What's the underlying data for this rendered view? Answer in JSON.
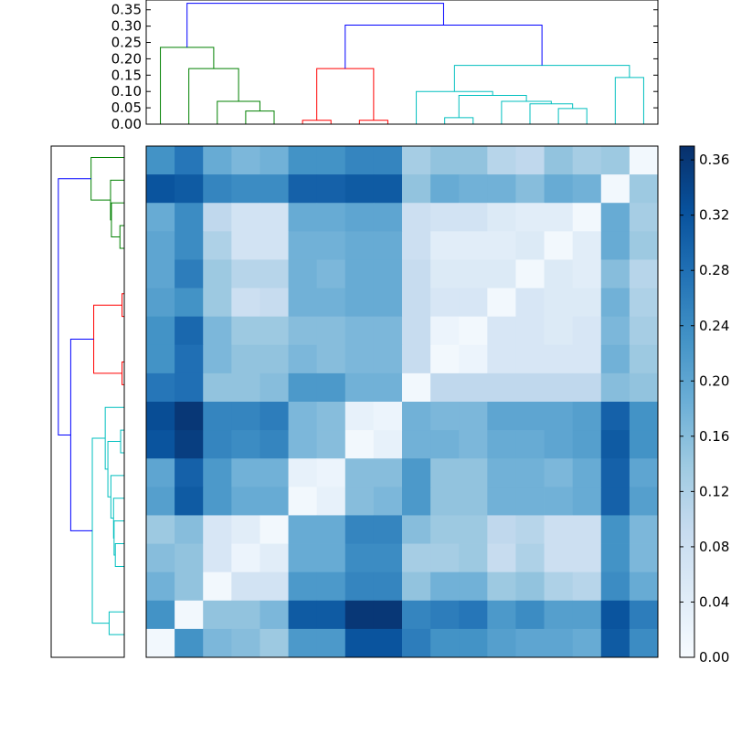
{
  "chart_data": {
    "type": "heatmap",
    "title": "",
    "n": 18,
    "colormap": "Blues",
    "colorbar": {
      "min": 0.0,
      "max": 0.37,
      "ticks": [
        0.0,
        0.04,
        0.08,
        0.12,
        0.16,
        0.2,
        0.24,
        0.28,
        0.32,
        0.36
      ],
      "tick_labels": [
        "0.00",
        "0.04",
        "0.08",
        "0.12",
        "0.16",
        "0.20",
        "0.24",
        "0.28",
        "0.32",
        "0.36"
      ]
    },
    "matrix": [
      [
        0.23,
        0.27,
        0.19,
        0.17,
        0.18,
        0.23,
        0.23,
        0.25,
        0.25,
        0.13,
        0.15,
        0.15,
        0.11,
        0.1,
        0.15,
        0.13,
        0.14,
        0.01
      ],
      [
        0.32,
        0.31,
        0.25,
        0.24,
        0.24,
        0.3,
        0.3,
        0.31,
        0.31,
        0.15,
        0.19,
        0.18,
        0.18,
        0.16,
        0.19,
        0.18,
        0.01,
        0.14
      ],
      [
        0.19,
        0.24,
        0.1,
        0.07,
        0.07,
        0.19,
        0.19,
        0.2,
        0.2,
        0.08,
        0.07,
        0.07,
        0.05,
        0.04,
        0.04,
        0.01,
        0.19,
        0.13
      ],
      [
        0.2,
        0.24,
        0.12,
        0.07,
        0.07,
        0.18,
        0.18,
        0.19,
        0.19,
        0.08,
        0.04,
        0.04,
        0.04,
        0.05,
        0.01,
        0.04,
        0.19,
        0.14
      ],
      [
        0.2,
        0.26,
        0.14,
        0.11,
        0.11,
        0.18,
        0.17,
        0.19,
        0.19,
        0.09,
        0.05,
        0.05,
        0.05,
        0.01,
        0.05,
        0.04,
        0.16,
        0.11
      ],
      [
        0.21,
        0.23,
        0.14,
        0.08,
        0.09,
        0.18,
        0.18,
        0.19,
        0.19,
        0.09,
        0.06,
        0.06,
        0.01,
        0.06,
        0.05,
        0.05,
        0.18,
        0.12
      ],
      [
        0.23,
        0.29,
        0.17,
        0.14,
        0.14,
        0.16,
        0.16,
        0.17,
        0.17,
        0.09,
        0.02,
        0.01,
        0.06,
        0.06,
        0.05,
        0.06,
        0.17,
        0.13
      ],
      [
        0.23,
        0.28,
        0.17,
        0.15,
        0.15,
        0.17,
        0.16,
        0.17,
        0.17,
        0.09,
        0.01,
        0.02,
        0.06,
        0.06,
        0.06,
        0.06,
        0.18,
        0.14
      ],
      [
        0.27,
        0.28,
        0.15,
        0.15,
        0.16,
        0.22,
        0.22,
        0.18,
        0.18,
        0.01,
        0.1,
        0.1,
        0.1,
        0.1,
        0.1,
        0.1,
        0.16,
        0.15
      ],
      [
        0.33,
        0.36,
        0.25,
        0.25,
        0.26,
        0.17,
        0.16,
        0.03,
        0.02,
        0.18,
        0.17,
        0.17,
        0.2,
        0.2,
        0.2,
        0.21,
        0.3,
        0.23
      ],
      [
        0.32,
        0.35,
        0.25,
        0.24,
        0.25,
        0.17,
        0.16,
        0.01,
        0.03,
        0.18,
        0.18,
        0.17,
        0.19,
        0.19,
        0.2,
        0.21,
        0.31,
        0.23
      ],
      [
        0.2,
        0.3,
        0.22,
        0.18,
        0.18,
        0.03,
        0.02,
        0.16,
        0.16,
        0.22,
        0.15,
        0.15,
        0.18,
        0.18,
        0.17,
        0.19,
        0.3,
        0.2
      ],
      [
        0.21,
        0.31,
        0.22,
        0.19,
        0.19,
        0.01,
        0.03,
        0.16,
        0.17,
        0.22,
        0.15,
        0.15,
        0.18,
        0.18,
        0.18,
        0.19,
        0.3,
        0.21
      ],
      [
        0.14,
        0.16,
        0.06,
        0.04,
        0.01,
        0.19,
        0.19,
        0.25,
        0.25,
        0.16,
        0.14,
        0.14,
        0.1,
        0.11,
        0.08,
        0.08,
        0.23,
        0.17
      ],
      [
        0.16,
        0.15,
        0.06,
        0.02,
        0.04,
        0.19,
        0.19,
        0.24,
        0.24,
        0.13,
        0.13,
        0.14,
        0.09,
        0.12,
        0.08,
        0.08,
        0.23,
        0.17
      ],
      [
        0.18,
        0.15,
        0.01,
        0.07,
        0.07,
        0.22,
        0.22,
        0.25,
        0.25,
        0.15,
        0.18,
        0.18,
        0.14,
        0.15,
        0.12,
        0.11,
        0.24,
        0.19
      ],
      [
        0.23,
        0.01,
        0.15,
        0.15,
        0.17,
        0.31,
        0.31,
        0.36,
        0.36,
        0.25,
        0.26,
        0.27,
        0.22,
        0.24,
        0.21,
        0.21,
        0.32,
        0.26
      ],
      [
        0.01,
        0.23,
        0.17,
        0.16,
        0.14,
        0.22,
        0.22,
        0.32,
        0.32,
        0.26,
        0.23,
        0.23,
        0.21,
        0.2,
        0.2,
        0.19,
        0.31,
        0.24
      ]
    ],
    "dendrogram_top": {
      "axis_range": [
        0.0,
        0.38
      ],
      "ticks": [
        0.0,
        0.05,
        0.1,
        0.15,
        0.2,
        0.25,
        0.3,
        0.35
      ],
      "tick_labels": [
        "0.00",
        "0.05",
        "0.10",
        "0.15",
        "0.20",
        "0.25",
        "0.30",
        "0.35"
      ],
      "colors": {
        "g": "#008000",
        "r": "#ff0000",
        "c": "#00bfbf",
        "b": "#0000ff"
      },
      "links": [
        {
          "x": [
            3.5,
            4.5
          ],
          "h0": [
            0.0,
            0.0
          ],
          "h": 0.04,
          "c": "g"
        },
        {
          "x": [
            2.5,
            4.0
          ],
          "h0": [
            0.0,
            0.04
          ],
          "h": 0.07,
          "c": "g"
        },
        {
          "x": [
            1.5,
            3.25
          ],
          "h0": [
            0.0,
            0.07
          ],
          "h": 0.17,
          "c": "g"
        },
        {
          "x": [
            0.5,
            2.375
          ],
          "h0": [
            0.0,
            0.17
          ],
          "h": 0.235,
          "c": "g"
        },
        {
          "x": [
            5.5,
            6.5
          ],
          "h0": [
            0.0,
            0.0
          ],
          "h": 0.012,
          "c": "r"
        },
        {
          "x": [
            7.5,
            8.5
          ],
          "h0": [
            0.0,
            0.0
          ],
          "h": 0.012,
          "c": "r"
        },
        {
          "x": [
            6.0,
            8.0
          ],
          "h0": [
            0.012,
            0.012
          ],
          "h": 0.17,
          "c": "r"
        },
        {
          "x": [
            10.5,
            11.5
          ],
          "h0": [
            0.0,
            0.0
          ],
          "h": 0.02,
          "c": "c"
        },
        {
          "x": [
            14.5,
            15.5
          ],
          "h0": [
            0.0,
            0.0
          ],
          "h": 0.048,
          "c": "c"
        },
        {
          "x": [
            13.5,
            15.0
          ],
          "h0": [
            0.0,
            0.048
          ],
          "h": 0.062,
          "c": "c"
        },
        {
          "x": [
            12.5,
            14.25
          ],
          "h0": [
            0.0,
            0.062
          ],
          "h": 0.07,
          "c": "c"
        },
        {
          "x": [
            11.0,
            13.375
          ],
          "h0": [
            0.02,
            0.07
          ],
          "h": 0.088,
          "c": "c"
        },
        {
          "x": [
            9.5,
            12.1875
          ],
          "h0": [
            0.0,
            0.088
          ],
          "h": 0.1,
          "c": "c"
        },
        {
          "x": [
            16.5,
            17.5
          ],
          "h0": [
            0.0,
            0.0
          ],
          "h": 0.143,
          "c": "c"
        },
        {
          "x": [
            10.84375,
            17.0
          ],
          "h0": [
            0.1,
            0.143
          ],
          "h": 0.18,
          "c": "c"
        },
        {
          "x": [
            7.0,
            13.921875
          ],
          "h0": [
            0.17,
            0.18
          ],
          "h": 0.303,
          "c": "b"
        },
        {
          "x": [
            1.4375,
            10.4609375
          ],
          "h0": [
            0.235,
            0.303
          ],
          "h": 0.37,
          "c": "b"
        }
      ]
    },
    "dendrogram_left": {
      "axis_range": [
        0.0,
        0.38
      ],
      "links": [
        {
          "y": [
            16.5,
            17.5
          ],
          "h0": [
            0.0,
            0.0
          ],
          "h": 0.083,
          "c": "c"
        },
        {
          "y": [
            13.5,
            14.5
          ],
          "h0": [
            0.0,
            0.0
          ],
          "h": 0.048,
          "c": "c"
        },
        {
          "y": [
            12.5,
            14.0
          ],
          "h0": [
            0.0,
            0.048
          ],
          "h": 0.055,
          "c": "c"
        },
        {
          "y": [
            11.5,
            13.25
          ],
          "h0": [
            0.0,
            0.055
          ],
          "h": 0.058,
          "c": "c"
        },
        {
          "y": [
            10.5,
            12.375
          ],
          "h0": [
            0.0,
            0.058
          ],
          "h": 0.073,
          "c": "c"
        },
        {
          "y": [
            8.5,
            9.5
          ],
          "h0": [
            0.0,
            0.0
          ],
          "h": 0.018,
          "c": "c"
        },
        {
          "y": [
            9.0,
            11.4375
          ],
          "h0": [
            0.018,
            0.073
          ],
          "h": 0.09,
          "c": "c"
        },
        {
          "y": [
            7.5,
            10.21875
          ],
          "h0": [
            0.0,
            0.09
          ],
          "h": 0.105,
          "c": "c"
        },
        {
          "y": [
            8.859375,
            17.0
          ],
          "h0": [
            0.105,
            0.083
          ],
          "h": 0.178,
          "c": "c"
        },
        {
          "y": [
            5.5,
            6.5
          ],
          "h0": [
            0.0,
            0.0
          ],
          "h": 0.01,
          "c": "r"
        },
        {
          "y": [
            2.5,
            3.5
          ],
          "h0": [
            0.0,
            0.0
          ],
          "h": 0.01,
          "c": "r"
        },
        {
          "y": [
            3.0,
            6.0
          ],
          "h0": [
            0.01,
            0.01
          ],
          "h": 0.17,
          "c": "r"
        },
        {
          "y": [
            4.5,
            12.9296875
          ],
          "h0": [
            0.17,
            0.178
          ],
          "h": 0.3,
          "c": "b"
        },
        {
          "y": [
            -0.5,
            0.5
          ],
          "h0": [
            0.0,
            0.0
          ],
          "h": 0.022,
          "c": "g"
        },
        {
          "y": [
            -1.5,
            0.0
          ],
          "h0": [
            0.0,
            0.022
          ],
          "h": 0.07,
          "c": "g"
        },
        {
          "y": [
            -2.5,
            -0.75
          ],
          "h0": [
            0.0,
            0.07
          ],
          "h": 0.075,
          "c": "g"
        },
        {
          "y": [
            -3.5,
            -1.625
          ],
          "h0": [
            0.0,
            0.075
          ],
          "h": 0.185,
          "c": "g"
        },
        {
          "y": [
            -2.5625,
            8.71484375
          ],
          "h0": [
            0.185,
            0.3
          ],
          "h": 0.37,
          "c": "b"
        }
      ]
    }
  }
}
